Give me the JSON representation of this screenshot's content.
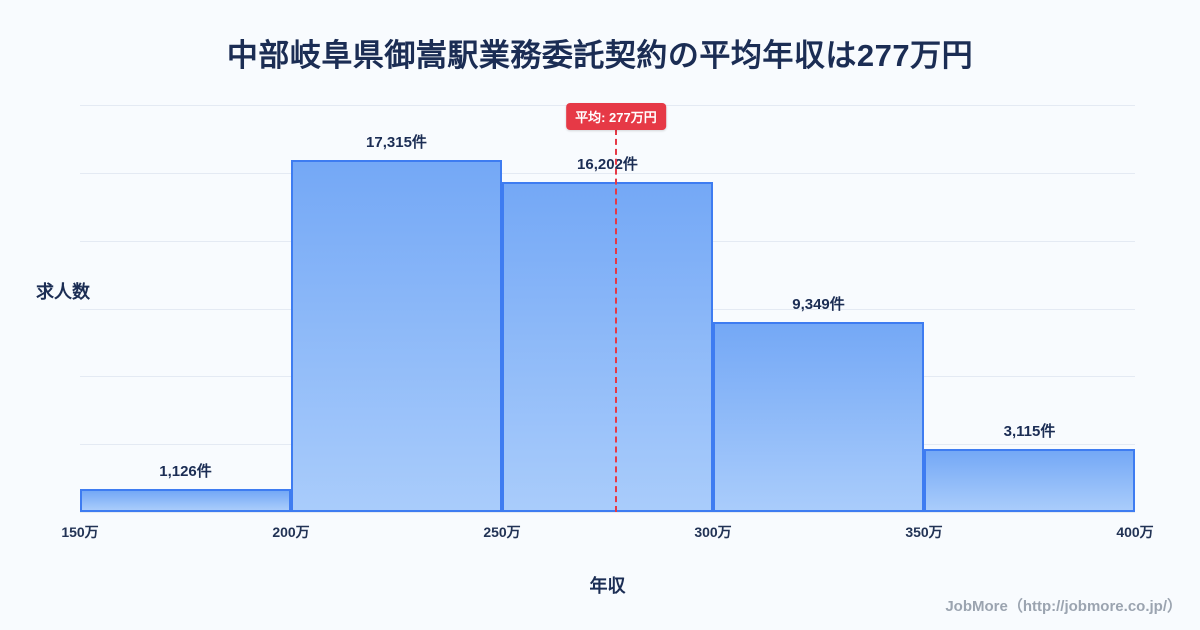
{
  "title": "中部岐阜県御嵩駅業務委託契約の平均年収は277万円",
  "chart_data": {
    "type": "bar",
    "title": "中部岐阜県御嵩駅業務委託契約の平均年収は277万円",
    "xlabel": "年収",
    "ylabel": "求人数",
    "x_ticks": [
      "150万",
      "200万",
      "250万",
      "300万",
      "350万",
      "400万"
    ],
    "x_range": [
      150,
      400
    ],
    "bins": [
      "150万-200万",
      "200万-250万",
      "250万-300万",
      "300万-350万",
      "350万-400万"
    ],
    "values": [
      1126,
      17315,
      16202,
      9349,
      3115
    ],
    "value_labels": [
      "1,126件",
      "17,315件",
      "16,202件",
      "9,349件",
      "3,115件"
    ],
    "ylim": [
      0,
      20000
    ],
    "grid": "horizontal",
    "legend": "none",
    "average_line": {
      "x": 277,
      "label": "平均: 277万円",
      "color": "#e63946"
    },
    "colors": {
      "bar_top": "#74a8f6",
      "bar_bottom": "#a9ccfb",
      "bar_border": "#3e7cf1",
      "background": "#f8fbfe",
      "text": "#1b2d54"
    }
  },
  "footer": {
    "credit": "JobMore（http://jobmore.co.jp/）"
  }
}
